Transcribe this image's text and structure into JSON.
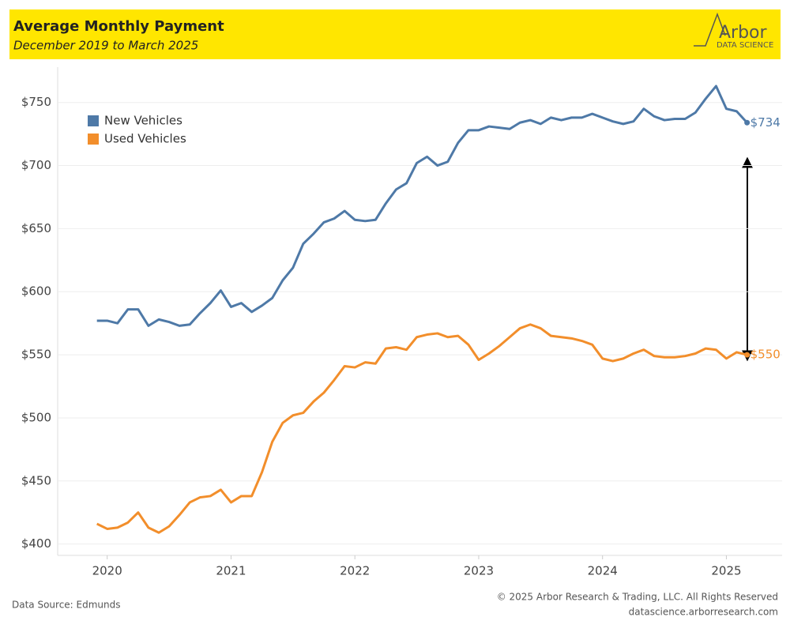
{
  "header": {
    "title": "Average Monthly Payment",
    "subtitle": "December 2019 to March 2025",
    "logo": "Arbor",
    "logo_sub": "DATA SCIENCE"
  },
  "chart_data": {
    "type": "line",
    "x": [
      2019.917,
      2020.0,
      2020.083,
      2020.167,
      2020.25,
      2020.333,
      2020.417,
      2020.5,
      2020.583,
      2020.667,
      2020.75,
      2020.833,
      2020.917,
      2021.0,
      2021.083,
      2021.167,
      2021.25,
      2021.333,
      2021.417,
      2021.5,
      2021.583,
      2021.667,
      2021.75,
      2021.833,
      2021.917,
      2022.0,
      2022.083,
      2022.167,
      2022.25,
      2022.333,
      2022.417,
      2022.5,
      2022.583,
      2022.667,
      2022.75,
      2022.833,
      2022.917,
      2023.0,
      2023.083,
      2023.167,
      2023.25,
      2023.333,
      2023.417,
      2023.5,
      2023.583,
      2023.667,
      2023.75,
      2023.833,
      2023.917,
      2024.0,
      2024.083,
      2024.167,
      2024.25,
      2024.333,
      2024.417,
      2024.5,
      2024.583,
      2024.667,
      2024.75,
      2024.833,
      2024.917,
      2025.0,
      2025.083,
      2025.167
    ],
    "series": [
      {
        "name": "New Vehicles",
        "color": "#4e79a7",
        "values": [
          577,
          577,
          575,
          586,
          586,
          573,
          578,
          576,
          573,
          574,
          583,
          591,
          601,
          588,
          591,
          584,
          589,
          595,
          609,
          619,
          638,
          646,
          655,
          658,
          664,
          657,
          656,
          657,
          670,
          681,
          686,
          702,
          707,
          700,
          703,
          718,
          728,
          728,
          731,
          730,
          729,
          734,
          736,
          733,
          738,
          736,
          738,
          738,
          741,
          738,
          735,
          733,
          735,
          745,
          739,
          736,
          737,
          737,
          742,
          753,
          763,
          745,
          743,
          734
        ],
        "value_labels": [
          null,
          null,
          null,
          null,
          null,
          null,
          null,
          null,
          null,
          null,
          null,
          null,
          null,
          null,
          null,
          null,
          null,
          null,
          null,
          null,
          null,
          null,
          null,
          null,
          null,
          null,
          null,
          null,
          null,
          null,
          null,
          null,
          null,
          null,
          null,
          null,
          null,
          null,
          null,
          null,
          null,
          null,
          null,
          null,
          null,
          null,
          null,
          null,
          null,
          null,
          null,
          null,
          null,
          null,
          null,
          null,
          null,
          null,
          null,
          null,
          null,
          null,
          null,
          "$734"
        ]
      },
      {
        "name": "Used Vehicles",
        "color": "#f28e2b",
        "values": [
          416,
          412,
          413,
          417,
          425,
          413,
          409,
          414,
          423,
          433,
          437,
          438,
          443,
          433,
          438,
          438,
          457,
          481,
          496,
          502,
          504,
          513,
          520,
          530,
          541,
          540,
          544,
          543,
          555,
          556,
          554,
          564,
          566,
          567,
          564,
          565,
          558,
          546,
          551,
          557,
          564,
          571,
          574,
          571,
          565,
          564,
          563,
          561,
          558,
          547,
          545,
          547,
          551,
          554,
          549,
          548,
          548,
          549,
          551,
          555,
          554,
          547,
          552,
          550
        ],
        "value_labels": [
          null,
          null,
          null,
          null,
          null,
          null,
          null,
          null,
          null,
          null,
          null,
          null,
          null,
          null,
          null,
          null,
          null,
          null,
          null,
          null,
          null,
          null,
          null,
          null,
          null,
          null,
          null,
          null,
          null,
          null,
          null,
          null,
          null,
          null,
          null,
          null,
          null,
          null,
          null,
          null,
          null,
          null,
          null,
          null,
          null,
          null,
          null,
          null,
          null,
          null,
          null,
          null,
          null,
          null,
          null,
          null,
          null,
          null,
          null,
          null,
          null,
          null,
          null,
          "$550"
        ]
      }
    ],
    "xlim": [
      2019.6,
      2025.45
    ],
    "xticks": [
      2020,
      2021,
      2022,
      2023,
      2024,
      2025
    ],
    "ylim": [
      391,
      778
    ],
    "yticks": [
      {
        "value": 400,
        "label": "$400"
      },
      {
        "value": 450,
        "label": "$450"
      },
      {
        "value": 500,
        "label": "$500"
      },
      {
        "value": 550,
        "label": "$550"
      },
      {
        "value": 600,
        "label": "$600"
      },
      {
        "value": 650,
        "label": "$650"
      },
      {
        "value": 700,
        "label": "$700"
      },
      {
        "value": 750,
        "label": "$750"
      }
    ],
    "grid": true,
    "legend": "top-left"
  },
  "footer": {
    "source": "Data Source: Edmunds",
    "copyright": "© 2025 Arbor Research & Trading, LLC. All Rights Reserved",
    "url": "datascience.arborresearch.com"
  }
}
